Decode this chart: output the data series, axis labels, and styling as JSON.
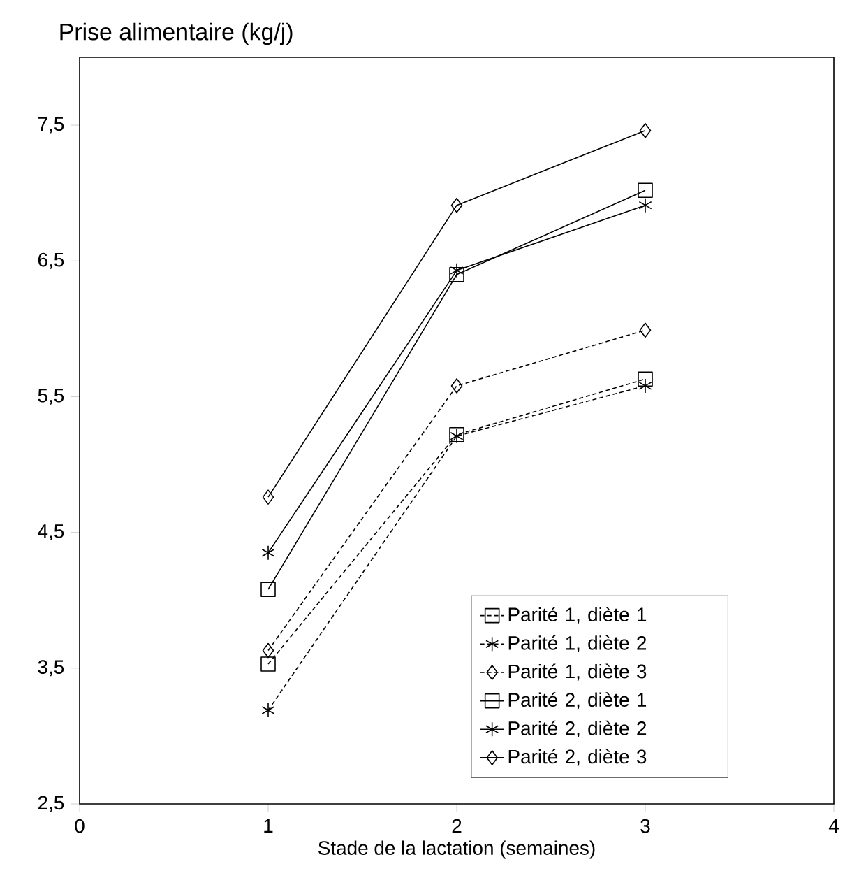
{
  "chart_data": {
    "type": "line",
    "ylabel": "Prise alimentaire (kg/j)",
    "xlabel": "Stade de la lactation (semaines)",
    "x": [
      1,
      2,
      3
    ],
    "xlim": [
      0,
      4
    ],
    "xticks": [
      0,
      1,
      2,
      3,
      4
    ],
    "ylim": [
      2.5,
      8
    ],
    "yticks": [
      {
        "value": 2.5,
        "label": "2,5"
      },
      {
        "value": 3.5,
        "label": "3,5"
      },
      {
        "value": 4.5,
        "label": "4,5"
      },
      {
        "value": 5.5,
        "label": "5,5"
      },
      {
        "value": 6.5,
        "label": "6,5"
      },
      {
        "value": 7.5,
        "label": "7,5"
      }
    ],
    "grid": false,
    "legend": "bottom right",
    "series": [
      {
        "name": "Parité 1, diète 1",
        "color": "#000000",
        "marker": "square",
        "line_style": "dashed",
        "values": [
          3.53,
          5.22,
          5.63
        ]
      },
      {
        "name": "Parité 1, diète 2",
        "color": "#000000",
        "marker": "cross",
        "line_style": "dashed",
        "values": [
          3.19,
          5.21,
          5.58
        ]
      },
      {
        "name": "Parité 1, diète 3",
        "color": "#000000",
        "marker": "diamond",
        "line_style": "dashed",
        "values": [
          3.63,
          5.58,
          5.99
        ]
      },
      {
        "name": "Parité 2, diète 1",
        "color": "#000000",
        "marker": "square",
        "line_style": "solid",
        "values": [
          4.08,
          6.4,
          7.02
        ]
      },
      {
        "name": "Parité 2, diète 2",
        "color": "#000000",
        "marker": "cross",
        "line_style": "solid",
        "values": [
          4.35,
          6.43,
          6.91
        ]
      },
      {
        "name": "Parité 2, diète 3",
        "color": "#000000",
        "marker": "diamond",
        "line_style": "solid",
        "values": [
          4.76,
          6.91,
          7.46
        ]
      }
    ]
  }
}
